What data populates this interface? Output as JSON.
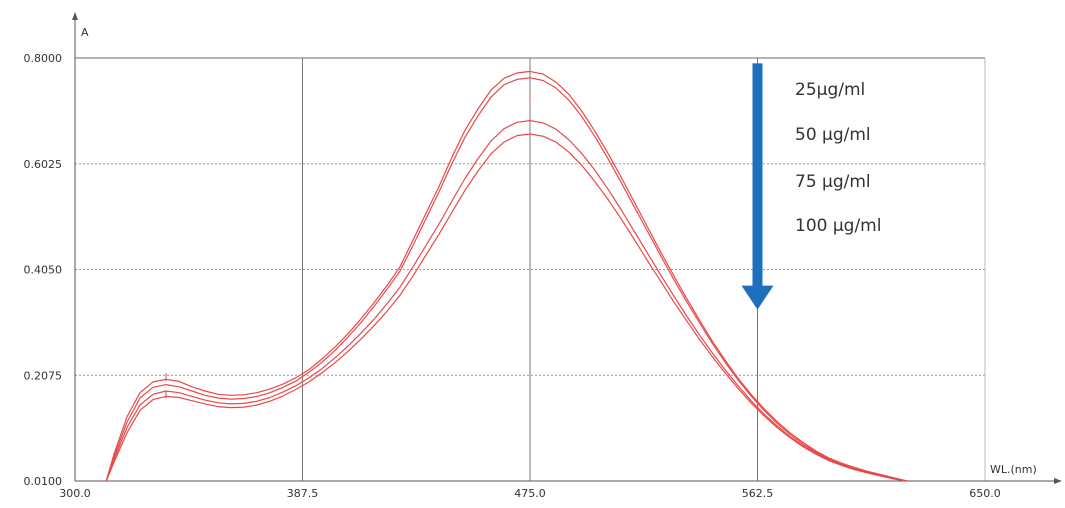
{
  "chart_data": {
    "type": "line",
    "title": "",
    "xlabel": "WL.(nm)",
    "ylabel": "A",
    "xlim": [
      300.0,
      650.0
    ],
    "ylim": [
      0.01,
      0.8
    ],
    "x_ticks": [
      "300.0",
      "387.5",
      "475.0",
      "562.5",
      "650.0"
    ],
    "y_ticks": [
      "0.0100",
      "0.2075",
      "0.4050",
      "0.6025",
      "0.8000"
    ],
    "grid": true,
    "annotations": [
      "25µg/ml",
      "50 µg/ml",
      "75 µg/ml",
      "100 µg/ml"
    ],
    "arrow": {
      "x": 562.5,
      "from_y": 0.79,
      "to_y": 0.33,
      "color": "#1f6fbf"
    },
    "line_color": "#e8494b",
    "x": [
      312,
      315,
      320,
      325,
      330,
      335,
      340,
      345,
      350,
      355,
      360,
      365,
      370,
      375,
      380,
      385,
      390,
      395,
      400,
      405,
      410,
      415,
      420,
      425,
      430,
      435,
      440,
      445,
      450,
      455,
      460,
      465,
      470,
      475,
      480,
      485,
      490,
      495,
      500,
      505,
      510,
      515,
      520,
      525,
      530,
      535,
      540,
      545,
      550,
      555,
      560,
      565,
      570,
      575,
      580,
      585,
      590,
      595,
      600,
      605,
      610,
      615,
      620
    ],
    "series": [
      {
        "values": [
          0.01,
          0.06,
          0.13,
          0.175,
          0.195,
          0.2,
          0.196,
          0.186,
          0.178,
          0.172,
          0.17,
          0.171,
          0.175,
          0.182,
          0.191,
          0.203,
          0.218,
          0.238,
          0.26,
          0.285,
          0.313,
          0.343,
          0.375,
          0.41,
          0.46,
          0.51,
          0.56,
          0.615,
          0.665,
          0.705,
          0.74,
          0.762,
          0.772,
          0.775,
          0.77,
          0.755,
          0.732,
          0.7,
          0.663,
          0.622,
          0.578,
          0.532,
          0.486,
          0.44,
          0.396,
          0.353,
          0.312,
          0.272,
          0.236,
          0.202,
          0.172,
          0.145,
          0.121,
          0.1,
          0.082,
          0.066,
          0.053,
          0.043,
          0.035,
          0.028,
          0.022,
          0.016,
          0.01
        ]
      },
      {
        "values": [
          0.01,
          0.055,
          0.12,
          0.165,
          0.185,
          0.19,
          0.186,
          0.178,
          0.17,
          0.165,
          0.163,
          0.164,
          0.168,
          0.175,
          0.185,
          0.197,
          0.213,
          0.232,
          0.254,
          0.279,
          0.306,
          0.336,
          0.368,
          0.402,
          0.45,
          0.5,
          0.55,
          0.603,
          0.652,
          0.692,
          0.727,
          0.75,
          0.76,
          0.763,
          0.758,
          0.744,
          0.721,
          0.69,
          0.653,
          0.612,
          0.568,
          0.523,
          0.478,
          0.433,
          0.389,
          0.347,
          0.307,
          0.268,
          0.232,
          0.199,
          0.169,
          0.142,
          0.118,
          0.097,
          0.079,
          0.064,
          0.051,
          0.041,
          0.033,
          0.027,
          0.021,
          0.015,
          0.01
        ]
      },
      {
        "values": [
          0.01,
          0.05,
          0.11,
          0.152,
          0.172,
          0.178,
          0.175,
          0.168,
          0.161,
          0.156,
          0.154,
          0.155,
          0.159,
          0.166,
          0.176,
          0.188,
          0.203,
          0.22,
          0.24,
          0.262,
          0.286,
          0.312,
          0.341,
          0.372,
          0.41,
          0.45,
          0.49,
          0.533,
          0.575,
          0.612,
          0.645,
          0.668,
          0.68,
          0.683,
          0.679,
          0.667,
          0.647,
          0.621,
          0.59,
          0.555,
          0.517,
          0.477,
          0.437,
          0.397,
          0.358,
          0.32,
          0.284,
          0.25,
          0.218,
          0.188,
          0.16,
          0.135,
          0.113,
          0.093,
          0.076,
          0.062,
          0.05,
          0.04,
          0.032,
          0.026,
          0.02,
          0.014,
          0.01
        ]
      },
      {
        "values": [
          0.01,
          0.045,
          0.1,
          0.142,
          0.162,
          0.168,
          0.166,
          0.16,
          0.154,
          0.149,
          0.147,
          0.148,
          0.152,
          0.159,
          0.169,
          0.181,
          0.195,
          0.212,
          0.231,
          0.252,
          0.275,
          0.3,
          0.327,
          0.357,
          0.393,
          0.432,
          0.471,
          0.512,
          0.553,
          0.589,
          0.621,
          0.643,
          0.655,
          0.658,
          0.654,
          0.643,
          0.624,
          0.599,
          0.569,
          0.536,
          0.5,
          0.462,
          0.423,
          0.385,
          0.347,
          0.311,
          0.276,
          0.243,
          0.212,
          0.183,
          0.156,
          0.132,
          0.11,
          0.091,
          0.074,
          0.06,
          0.048,
          0.039,
          0.031,
          0.025,
          0.019,
          0.014,
          0.01
        ]
      }
    ]
  }
}
